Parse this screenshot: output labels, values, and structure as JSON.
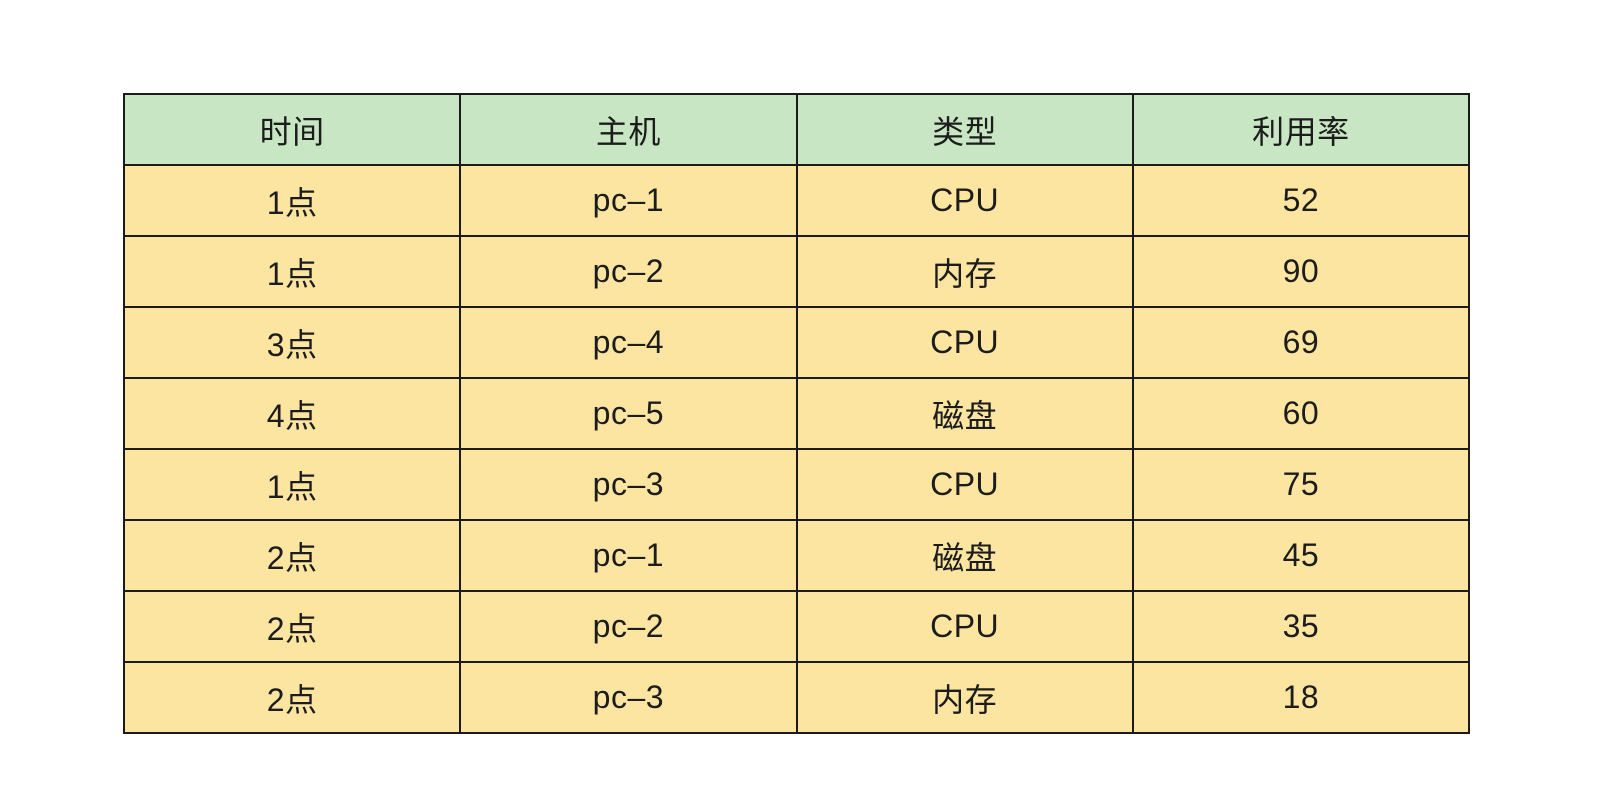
{
  "table": {
    "headers": [
      "时间",
      "主机",
      "类型",
      "利用率"
    ],
    "rows": [
      [
        "1点",
        "pc–1",
        "CPU",
        "52"
      ],
      [
        "1点",
        "pc–2",
        "内存",
        "90"
      ],
      [
        "3点",
        "pc–4",
        "CPU",
        "69"
      ],
      [
        "4点",
        "pc–5",
        "磁盘",
        "60"
      ],
      [
        "1点",
        "pc–3",
        "CPU",
        "75"
      ],
      [
        "2点",
        "pc–1",
        "磁盘",
        "45"
      ],
      [
        "2点",
        "pc–2",
        "CPU",
        "35"
      ],
      [
        "2点",
        "pc–3",
        "内存",
        "18"
      ]
    ]
  },
  "colors": {
    "header_bg": "#c9e6c4",
    "row_bg": "#fbe5a0",
    "border": "#1b1b1b",
    "text": "#1c1c1c",
    "page_bg": "#ffffff"
  },
  "chart_data": {
    "type": "table",
    "title": "",
    "columns": [
      "时间",
      "主机",
      "类型",
      "利用率"
    ],
    "rows": [
      [
        "1点",
        "pc–1",
        "CPU",
        52
      ],
      [
        "1点",
        "pc–2",
        "内存",
        90
      ],
      [
        "3点",
        "pc–4",
        "CPU",
        69
      ],
      [
        "4点",
        "pc–5",
        "磁盘",
        60
      ],
      [
        "1点",
        "pc–3",
        "CPU",
        75
      ],
      [
        "2点",
        "pc–1",
        "磁盘",
        45
      ],
      [
        "2点",
        "pc–2",
        "CPU",
        35
      ],
      [
        "2点",
        "pc–3",
        "内存",
        18
      ]
    ],
    "layout": {
      "header_fill": "#c9e6c4",
      "body_fill": "#fbe5a0",
      "grid": true
    }
  }
}
